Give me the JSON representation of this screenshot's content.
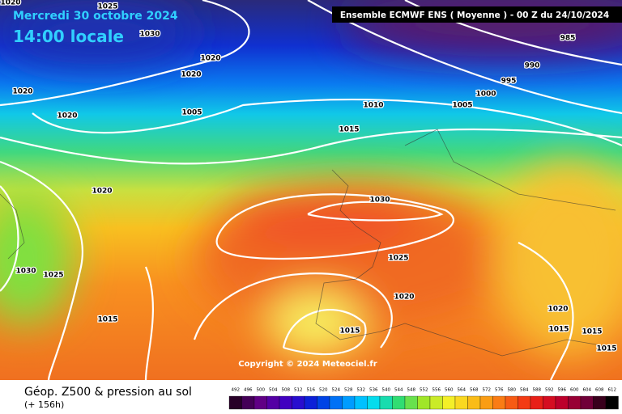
{
  "header": {
    "date": "Mercredi 30 octobre 2024",
    "time": "14:00 locale",
    "model": "Ensemble ECMWF ENS  ( Moyenne )  -  00 Z du 24/10/2024"
  },
  "map": {
    "isobar_labels": [
      "1020",
      "1025",
      "1030",
      "1020",
      "1020",
      "1020",
      "1020",
      "1005",
      "1010",
      "1005",
      "1000",
      "995",
      "990",
      "985",
      "1015",
      "1020",
      "1030",
      "1025",
      "1030",
      "1025",
      "1015",
      "1020",
      "1020",
      "1015",
      "1015",
      "1015",
      "1015"
    ],
    "copyright": "Copyright © 2024 Meteociel.fr"
  },
  "footer": {
    "title": "Géop. Z500 & pression au sol",
    "lead": "(+ 156h)",
    "scale": [
      492,
      496,
      500,
      504,
      508,
      512,
      516,
      520,
      524,
      528,
      532,
      536,
      540,
      544,
      548,
      552,
      556,
      560,
      564,
      568,
      572,
      576,
      580,
      584,
      588,
      592,
      596,
      600,
      604,
      608,
      612
    ]
  }
}
